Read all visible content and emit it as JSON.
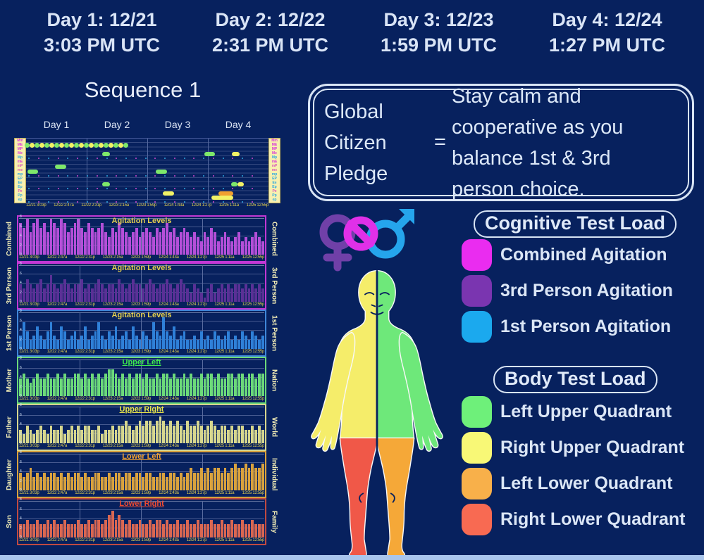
{
  "page": {
    "background": "#07215e",
    "bottom_bar_color": "#a9c5ec"
  },
  "header": {
    "days": [
      {
        "line1": "Day 1:  12/21",
        "line2": "3:03 PM UTC"
      },
      {
        "line1": "Day 2:  12/22",
        "line2": "2:31 PM UTC"
      },
      {
        "line1": "Day 3:  12/23",
        "line2": "1:59 PM UTC"
      },
      {
        "line1": "Day 4:  12/24",
        "line2": "1:27 PM UTC"
      }
    ]
  },
  "sequence": {
    "title": "Sequence 1",
    "day_labels": [
      "Day 1",
      "Day 2",
      "Day 3",
      "Day 4"
    ]
  },
  "x_ticks": [
    "12/21 3:03p",
    "12/22 2:47a",
    "12/22 2:31p",
    "12/23 2:15a",
    "12/23 1:59p",
    "12/24 1:43a",
    "12/24 1:27p",
    "12/25 1:11a",
    "12/25 12:55p"
  ],
  "pledge": {
    "left": "Global Citizen Pledge",
    "equals": "=",
    "right": "Stay calm and cooperative as you balance 1st & 3rd person choice."
  },
  "legends": {
    "cognitive": {
      "title": "Cognitive Test Load",
      "items": [
        {
          "label": "Combined Agitation",
          "color": "#ea2cf0"
        },
        {
          "label": "3rd Person Agitation",
          "color": "#7a35b0"
        },
        {
          "label": "1st Person Agitation",
          "color": "#1ba9ee"
        }
      ]
    },
    "body": {
      "title": "Body Test Load",
      "items": [
        {
          "label": "Left Upper Quadrant",
          "color": "#6ef07a"
        },
        {
          "label": "Right Upper Quadrant",
          "color": "#f8f876"
        },
        {
          "label": "Left Lower Quadrant",
          "color": "#f8b04a"
        },
        {
          "label": "Right Lower Quadrant",
          "color": "#f86a52"
        }
      ]
    }
  },
  "body_figure": {
    "upper_left_color": "#f5ed6a",
    "upper_right_color": "#6ee87a",
    "lower_left_color": "#f05848",
    "lower_right_color": "#f5a838",
    "outline_color": "#f8f8f8",
    "female_symbol_color": "#7040a8",
    "combined_symbol_color": "#e030e8",
    "male_symbol_color": "#25a5ec"
  },
  "chart_data": [
    {
      "type": "scatter",
      "name": "sequence-event-timeline",
      "title": "Sequence 1",
      "row_labels": [
        "Mm",
        "ME",
        "MP",
        "Me",
        "Mp",
        "mE",
        "mP",
        "me",
        "mp",
        "EP",
        "Ee",
        "Ep",
        "Pe",
        "Pp",
        "ep"
      ],
      "row_label_colors": [
        "#d838d8",
        "#d838d8",
        "#d838d8",
        "#d838d8",
        "#2fa8e0",
        "#d838d8",
        "#d858b8",
        "#d858b8",
        "#2fa8e0",
        "#2fa8e0",
        "#2fa8e0",
        "#2fa8e0",
        "#d858b8",
        "#2fa8e0",
        "#2fa8e0"
      ],
      "label_bg": "#f7f0b0",
      "day_boundaries_pct": [
        25,
        50,
        75
      ],
      "train": {
        "row": 1,
        "x_start": 0.5,
        "x_end": 41,
        "count": 21,
        "colors": [
          "#7ee86a",
          "#f2f266"
        ]
      },
      "pills": [
        {
          "row": 3,
          "x": 31.5,
          "w": 3.2,
          "color": "#7ee86a"
        },
        {
          "row": 3,
          "x": 73.5,
          "w": 4.5,
          "color": "#7ee86a"
        },
        {
          "row": 3,
          "x": 85.0,
          "w": 3.2,
          "color": "#f2f266"
        },
        {
          "row": 6,
          "x": 12.0,
          "w": 4.5,
          "color": "#7ee86a"
        },
        {
          "row": 7,
          "x": 0.5,
          "w": 4.5,
          "color": "#7ee86a"
        },
        {
          "row": 7,
          "x": 53.5,
          "w": 4.5,
          "color": "#7ee86a"
        },
        {
          "row": 10,
          "x": 31.5,
          "w": 3.2,
          "color": "#7ee86a"
        },
        {
          "row": 10,
          "x": 84.5,
          "w": 2.6,
          "color": "#7ee86a"
        },
        {
          "row": 10,
          "x": 87.3,
          "w": 2.6,
          "color": "#f2f266"
        },
        {
          "row": 12,
          "x": 56.5,
          "w": 4.5,
          "color": "#f2f266"
        },
        {
          "row": 12,
          "x": 79.5,
          "w": 6.0,
          "color": "#f0a030"
        },
        {
          "row": 13,
          "x": 76.5,
          "w": 9.0,
          "color": "#f2f266"
        }
      ],
      "tiny_dot_rows": [
        4,
        8,
        11,
        14
      ],
      "tiny_dot_colors": [
        "#2fa8e0",
        "#d048d0"
      ],
      "tiny_dot_count": 24
    },
    {
      "type": "bar",
      "name": "combined-agitation",
      "left_label": "Combined",
      "right_label": "Combined",
      "title": "Agitation Levels",
      "title_color": "#e3cf4e",
      "title_underline": false,
      "bar_color": "#b44fd8",
      "border_color": "#c238d4",
      "ylim": [
        0,
        8
      ],
      "yticks": [
        8,
        6,
        4,
        2,
        0
      ],
      "values": [
        7,
        6,
        8,
        5,
        7,
        8,
        6,
        7,
        5,
        8,
        7,
        6,
        8,
        7,
        5,
        6,
        7,
        8,
        6,
        5,
        7,
        6,
        5,
        6,
        7,
        5,
        4,
        6,
        5,
        7,
        6,
        5,
        4,
        5,
        6,
        4,
        5,
        6,
        5,
        4,
        6,
        5,
        6,
        7,
        5,
        6,
        4,
        5,
        6,
        5,
        4,
        5,
        4,
        3,
        5,
        4,
        6,
        5,
        3,
        4,
        5,
        4,
        3,
        4,
        5,
        3,
        4,
        3,
        4,
        5,
        4,
        3
      ]
    },
    {
      "type": "bar",
      "name": "3rd-person-agitation",
      "left_label": "3rd Person",
      "right_label": "3rd Person",
      "title": "Agitation Levels",
      "title_color": "#e3cf4e",
      "title_underline": false,
      "bar_color": "#5a3096",
      "border_color": "#c238d4",
      "ylim": [
        0,
        8
      ],
      "yticks": [
        8,
        6,
        4,
        2,
        0
      ],
      "values": [
        4,
        3,
        5,
        4,
        3,
        4,
        5,
        3,
        4,
        6,
        4,
        3,
        4,
        5,
        4,
        3,
        4,
        4,
        5,
        3,
        4,
        3,
        4,
        5,
        4,
        3,
        4,
        4,
        3,
        5,
        4,
        3,
        4,
        5,
        4,
        4,
        3,
        4,
        5,
        4,
        3,
        4,
        4,
        5,
        4,
        3,
        4,
        5,
        4,
        3,
        2,
        4,
        3,
        2,
        1,
        3,
        4,
        2,
        3,
        4,
        3,
        4,
        3,
        4,
        4,
        3,
        4,
        3,
        4,
        3,
        4,
        3
      ]
    },
    {
      "type": "bar",
      "name": "1st-person-agitation",
      "left_label": "1st Person",
      "right_label": "1st Person",
      "title": "Agitation Levels",
      "title_color": "#e3cf4e",
      "title_underline": false,
      "bar_color": "#2f80d8",
      "border_color": "#3f86d8",
      "ylim": [
        0,
        8
      ],
      "yticks": [
        8,
        6,
        4,
        2,
        0
      ],
      "values": [
        3,
        6,
        4,
        2,
        3,
        5,
        3,
        2,
        4,
        6,
        3,
        2,
        5,
        4,
        2,
        3,
        4,
        2,
        3,
        5,
        2,
        3,
        4,
        6,
        3,
        2,
        4,
        3,
        5,
        2,
        3,
        4,
        2,
        5,
        3,
        2,
        4,
        3,
        2,
        6,
        4,
        3,
        7,
        4,
        3,
        5,
        2,
        3,
        4,
        2,
        2,
        3,
        2,
        4,
        2,
        3,
        2,
        4,
        3,
        2,
        3,
        4,
        2,
        3,
        2,
        4,
        3,
        2,
        4,
        3,
        2,
        3
      ]
    },
    {
      "type": "bar",
      "name": "upper-left-quadrant",
      "left_label": "Mother",
      "right_label": "Nation",
      "title": "Upper Left",
      "title_color": "#3ee84e",
      "title_underline": true,
      "bar_color": "#6cd97a",
      "border_color": "#6cd97a",
      "ylim": [
        0,
        8
      ],
      "yticks": [
        8,
        6,
        4,
        2,
        0
      ],
      "values": [
        4,
        5,
        4,
        3,
        4,
        5,
        4,
        4,
        5,
        4,
        4,
        5,
        4,
        5,
        4,
        4,
        5,
        5,
        4,
        5,
        4,
        5,
        4,
        5,
        4,
        5,
        6,
        6,
        5,
        4,
        5,
        4,
        5,
        4,
        5,
        5,
        4,
        5,
        4,
        4,
        5,
        4,
        5,
        5,
        4,
        5,
        4,
        4,
        5,
        4,
        5,
        4,
        4,
        5,
        4,
        5,
        5,
        4,
        5,
        4,
        4,
        5,
        5,
        4,
        5,
        5,
        4,
        5,
        5,
        4,
        5,
        5
      ]
    },
    {
      "type": "bar",
      "name": "upper-right-quadrant",
      "left_label": "Father",
      "right_label": "World",
      "title": "Upper Right",
      "title_color": "#ece84a",
      "title_underline": true,
      "bar_color": "#d6d68e",
      "border_color": "#d6d68e",
      "ylim": [
        0,
        8
      ],
      "yticks": [
        8,
        6,
        4,
        2,
        0
      ],
      "values": [
        3,
        2,
        4,
        3,
        2,
        3,
        4,
        3,
        2,
        4,
        3,
        3,
        4,
        2,
        3,
        4,
        3,
        4,
        3,
        4,
        4,
        3,
        3,
        4,
        2,
        3,
        3,
        4,
        3,
        4,
        4,
        5,
        4,
        3,
        4,
        5,
        4,
        5,
        5,
        4,
        5,
        6,
        5,
        4,
        5,
        4,
        5,
        4,
        3,
        5,
        4,
        4,
        5,
        4,
        3,
        4,
        5,
        4,
        3,
        4,
        4,
        3,
        4,
        3,
        4,
        4,
        3,
        3,
        4,
        3,
        4,
        3
      ]
    },
    {
      "type": "bar",
      "name": "lower-left-quadrant",
      "left_label": "Daughter",
      "right_label": "Individual",
      "title": "Lower Left",
      "title_color": "#f0a030",
      "title_underline": true,
      "bar_color": "#d9a23e",
      "border_color": "#d9a23e",
      "ylim": [
        0,
        8
      ],
      "yticks": [
        8,
        6,
        4,
        2,
        0
      ],
      "values": [
        4,
        3,
        4,
        5,
        3,
        4,
        3,
        4,
        3,
        4,
        4,
        3,
        4,
        3,
        4,
        3,
        4,
        4,
        3,
        4,
        3,
        3,
        4,
        4,
        3,
        3,
        4,
        3,
        4,
        4,
        3,
        4,
        4,
        3,
        4,
        4,
        3,
        4,
        4,
        3,
        3,
        4,
        4,
        3,
        4,
        4,
        3,
        4,
        3,
        4,
        5,
        4,
        4,
        5,
        4,
        5,
        4,
        5,
        5,
        4,
        5,
        4,
        5,
        6,
        5,
        5,
        6,
        5,
        6,
        5,
        5,
        6
      ]
    },
    {
      "type": "bar",
      "name": "lower-right-quadrant",
      "left_label": "Son",
      "right_label": "Family",
      "title": "Lower Right",
      "title_color": "#f04a30",
      "title_underline": true,
      "bar_color": "#d96752",
      "border_color": "#bf4a42",
      "ylim": [
        0,
        8
      ],
      "yticks": [
        8,
        6,
        4,
        2,
        0
      ],
      "values": [
        3,
        3,
        4,
        3,
        3,
        4,
        3,
        3,
        4,
        3,
        4,
        3,
        3,
        4,
        3,
        3,
        3,
        4,
        3,
        3,
        4,
        3,
        4,
        4,
        3,
        4,
        5,
        6,
        4,
        5,
        4,
        3,
        4,
        3,
        3,
        4,
        3,
        3,
        4,
        3,
        4,
        4,
        3,
        4,
        3,
        3,
        4,
        3,
        3,
        4,
        3,
        3,
        4,
        3,
        3,
        3,
        4,
        3,
        3,
        4,
        3,
        3,
        4,
        3,
        3,
        4,
        3,
        3,
        4,
        3,
        3,
        3
      ]
    }
  ]
}
